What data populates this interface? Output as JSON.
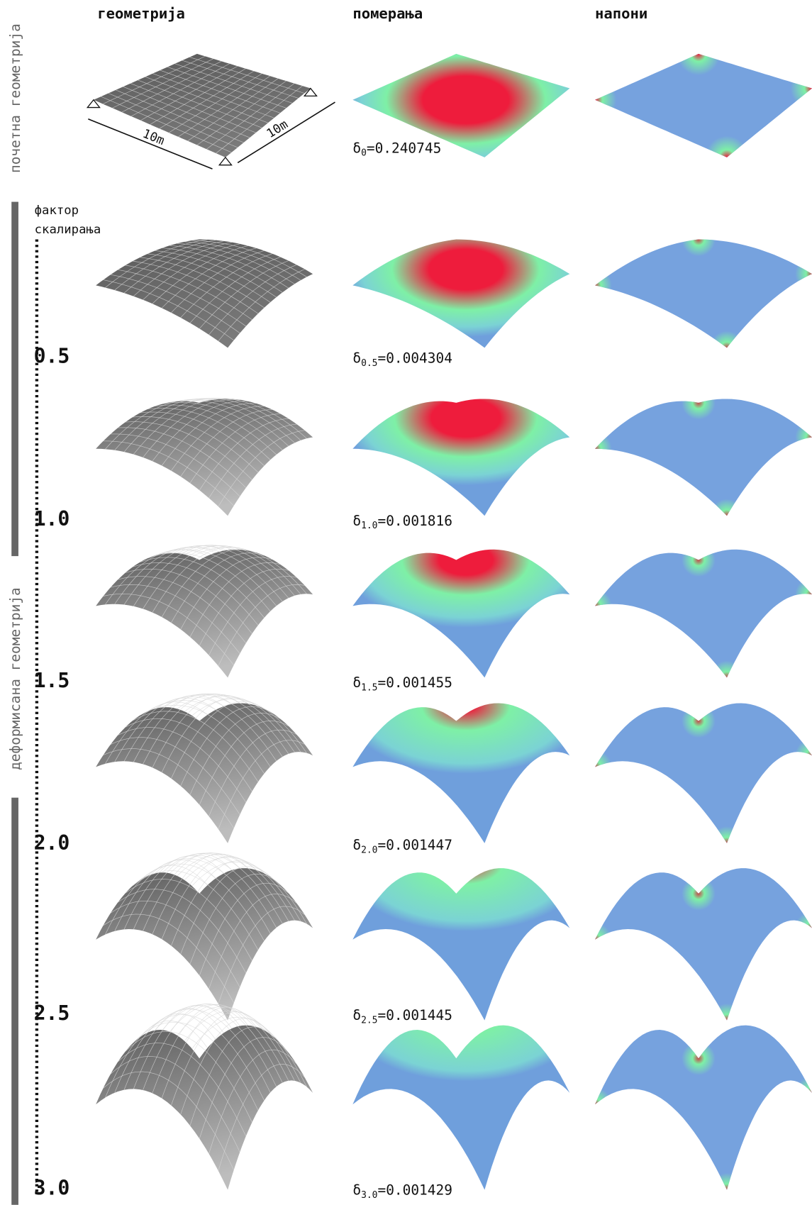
{
  "column_headers": [
    "геометрија",
    "померања",
    "напони"
  ],
  "row_groups": {
    "initial": "почетна геометрија",
    "deformed": "деформисана геометрија"
  },
  "dimension_labels": [
    "10m",
    "10m"
  ],
  "scale_factor_label": [
    "фактор",
    "скалирања"
  ],
  "initial_row": {
    "delta": {
      "symbol": "δ",
      "sub": "0",
      "rest": "=0.240745"
    }
  },
  "rows": [
    {
      "factor": "0.5",
      "delta": {
        "symbol": "δ",
        "sub": "0.5",
        "rest": "=0.004304"
      }
    },
    {
      "factor": "1.0",
      "delta": {
        "symbol": "δ",
        "sub": "1.0",
        "rest": "=0.001816"
      }
    },
    {
      "factor": "1.5",
      "delta": {
        "symbol": "δ",
        "sub": "1.5",
        "rest": "=0.001455"
      }
    },
    {
      "factor": "2.0",
      "delta": {
        "symbol": "δ",
        "sub": "2.0",
        "rest": "=0.001447"
      }
    },
    {
      "factor": "2.5",
      "delta": {
        "symbol": "δ",
        "sub": "2.5",
        "rest": "=0.001445"
      }
    },
    {
      "factor": "3.0",
      "delta": {
        "symbol": "δ",
        "sub": "3.0",
        "rest": "=0.001429"
      }
    }
  ]
}
